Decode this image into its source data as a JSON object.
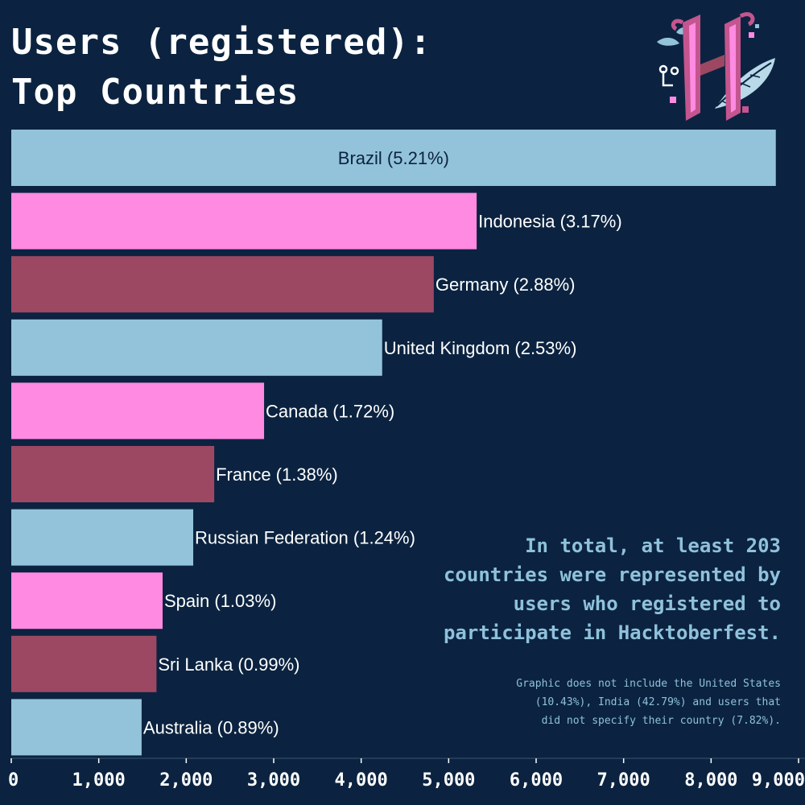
{
  "title_lines": [
    "Users (registered):",
    "Top Countries"
  ],
  "annotation": "In total, at least 203 countries were represented by users who registered to participate in Hacktoberfest.",
  "footnote": "Graphic does not include the United States (10.43%), India (42.79%) and users that did not specify their country (7.82%).",
  "colors": {
    "background": "#0b2340",
    "light_blue": "#93c3da",
    "pink": "#ff8ae2",
    "maroon": "#9c4863",
    "axis": "#2a4563"
  },
  "logo": {
    "icon": "hacktoberfest-h-logo-icon"
  },
  "chart_data": {
    "type": "bar",
    "orientation": "horizontal",
    "title": "Users (registered): Top Countries",
    "categories": [
      "Brazil",
      "Indonesia",
      "Germany",
      "United Kingdom",
      "Canada",
      "France",
      "Russian Federation",
      "Spain",
      "Sri Lanka",
      "Australia"
    ],
    "labels": [
      "Brazil (5.21%)",
      "Indonesia (3.17%)",
      "Germany (2.88%)",
      "United Kingdom (2.53%)",
      "Canada (1.72%)",
      "France (1.38%)",
      "Russian Federation (1.24%)",
      "Spain (1.03%)",
      "Sri Lanka (0.99%)",
      "Australia (0.89%)"
    ],
    "values": [
      8740,
      5320,
      4830,
      4240,
      2890,
      2320,
      2080,
      1730,
      1660,
      1490
    ],
    "bar_colors": [
      "#93c3da",
      "#ff8ae2",
      "#9c4863",
      "#93c3da",
      "#ff8ae2",
      "#9c4863",
      "#93c3da",
      "#ff8ae2",
      "#9c4863",
      "#93c3da"
    ],
    "xlim": [
      0,
      9000
    ],
    "xticks": [
      0,
      1000,
      2000,
      3000,
      4000,
      5000,
      6000,
      7000,
      8000,
      9000
    ],
    "xtick_labels": [
      "0",
      "1,000",
      "2,000",
      "3,000",
      "4,000",
      "5,000",
      "6,000",
      "7,000",
      "8,000",
      "9,000"
    ],
    "grid": false,
    "legend": "none"
  }
}
